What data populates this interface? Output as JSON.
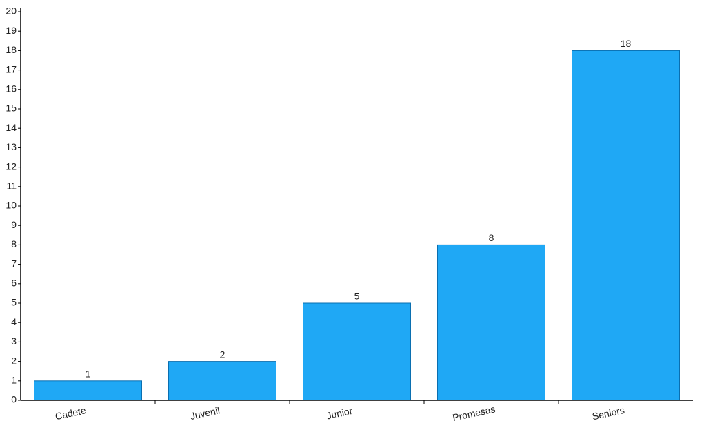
{
  "chart_data": {
    "type": "bar",
    "categories": [
      "Cadete",
      "Juvenil",
      "Junior",
      "Promesas",
      "Seniors"
    ],
    "values": [
      1,
      2,
      5,
      8,
      18
    ],
    "color": "#1fa8f5",
    "ylim": [
      0,
      20
    ],
    "yticks": [
      0,
      1,
      2,
      3,
      4,
      5,
      6,
      7,
      8,
      9,
      10,
      11,
      12,
      13,
      14,
      15,
      16,
      17,
      18,
      19,
      20
    ]
  }
}
